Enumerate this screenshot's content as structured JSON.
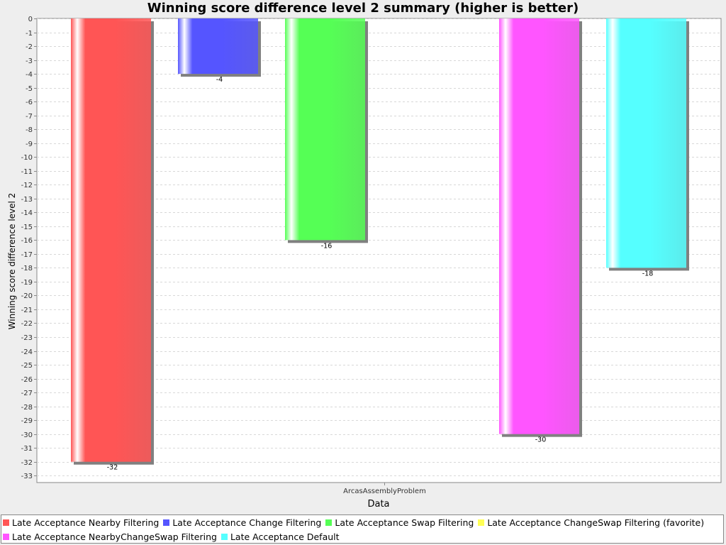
{
  "chart_data": {
    "type": "bar",
    "title": "Winning score difference level 2 summary (higher is better)",
    "xlabel": "Data",
    "ylabel": "Winning score difference level 2",
    "categories": [
      "ArcasAssemblyProblem"
    ],
    "ylim": [
      -33.5,
      0
    ],
    "yticks": [
      0,
      -1,
      -2,
      -3,
      -4,
      -5,
      -6,
      -7,
      -8,
      -9,
      -10,
      -11,
      -12,
      -13,
      -14,
      -15,
      -16,
      -17,
      -18,
      -19,
      -20,
      -21,
      -22,
      -23,
      -24,
      -25,
      -26,
      -27,
      -28,
      -29,
      -30,
      -31,
      -32,
      -33
    ],
    "grid": true,
    "legend_position": "bottom",
    "series": [
      {
        "name": "Late Acceptance Nearby Filtering",
        "values": [
          -32
        ],
        "color": "#ff5555",
        "label": "-32"
      },
      {
        "name": "Late Acceptance Change Filtering",
        "values": [
          -4
        ],
        "color": "#5555ff",
        "label": "-4"
      },
      {
        "name": "Late Acceptance Swap Filtering",
        "values": [
          -16
        ],
        "color": "#55ff55",
        "label": "-16"
      },
      {
        "name": "Late Acceptance ChangeSwap Filtering (favorite)",
        "values": [
          null
        ],
        "color": "#ffff55",
        "label": ""
      },
      {
        "name": "Late Acceptance NearbyChangeSwap Filtering",
        "values": [
          -30
        ],
        "color": "#ff55ff",
        "label": "-30"
      },
      {
        "name": "Late Acceptance Default",
        "values": [
          -18
        ],
        "color": "#55ffff",
        "label": "-18"
      }
    ]
  }
}
